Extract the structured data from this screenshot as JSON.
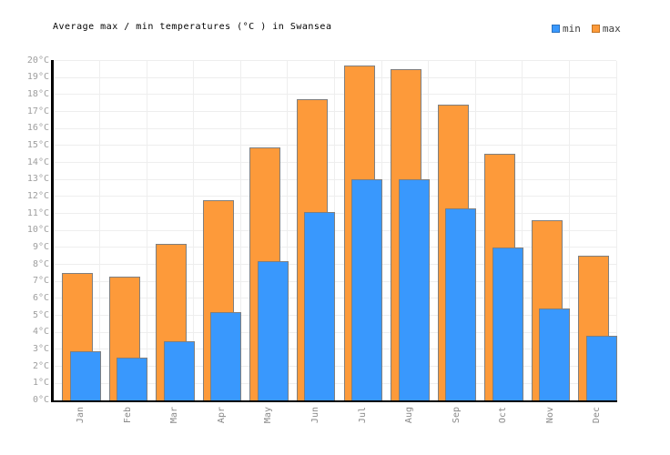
{
  "title": "Average max / min temperatures (°C ) in Swansea",
  "legend": {
    "items": [
      {
        "label": "min",
        "color": "#3998fd"
      },
      {
        "label": "max",
        "color": "#fd9a3a"
      }
    ]
  },
  "chart_data": {
    "type": "bar",
    "title": "Average max / min temperatures (°C ) in Swansea",
    "categories": [
      "Jan",
      "Feb",
      "Mar",
      "Apr",
      "May",
      "Jun",
      "Jul",
      "Aug",
      "Sep",
      "Oct",
      "Nov",
      "Dec"
    ],
    "series": [
      {
        "name": "min",
        "color": "#3998fd",
        "border_color": "#7f7f7f",
        "values": [
          2.9,
          2.5,
          3.5,
          5.2,
          8.2,
          11.1,
          13.0,
          13.0,
          11.3,
          9.0,
          5.4,
          3.8
        ]
      },
      {
        "name": "max",
        "color": "#fd9a3a",
        "border_color": "#7f7f7f",
        "values": [
          7.5,
          7.3,
          9.2,
          11.8,
          14.9,
          17.7,
          19.7,
          19.5,
          17.4,
          14.5,
          10.6,
          8.5
        ]
      }
    ],
    "ylim": [
      0,
      20
    ],
    "ytick_step": 1,
    "ytick_suffix": "°C",
    "xlabel": "",
    "ylabel": "",
    "grid": true,
    "legend_position": "top-right",
    "colors": {
      "grid": "#eeeeee",
      "axis": "#000000",
      "ytick_label": "#9e9e9e",
      "xtick_label": "#8a8a8a",
      "title": "#000000",
      "legend_text": "#404040"
    }
  }
}
